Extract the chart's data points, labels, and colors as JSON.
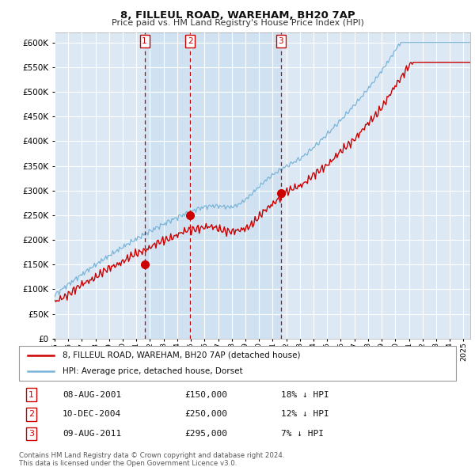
{
  "title": "8, FILLEUL ROAD, WAREHAM, BH20 7AP",
  "subtitle": "Price paid vs. HM Land Registry's House Price Index (HPI)",
  "legend_line1": "8, FILLEUL ROAD, WAREHAM, BH20 7AP (detached house)",
  "legend_line2": "HPI: Average price, detached house, Dorset",
  "footer1": "Contains HM Land Registry data © Crown copyright and database right 2024.",
  "footer2": "This data is licensed under the Open Government Licence v3.0.",
  "transactions": [
    {
      "label": "1",
      "date": "08-AUG-2001",
      "price": 150000,
      "pct": "18%",
      "x_year": 2001.6
    },
    {
      "label": "2",
      "date": "10-DEC-2004",
      "price": 250000,
      "pct": "12%",
      "x_year": 2004.95
    },
    {
      "label": "3",
      "date": "09-AUG-2011",
      "price": 295000,
      "pct": "7%",
      "x_year": 2011.6
    }
  ],
  "hpi_color": "#7ab4d8",
  "price_color": "#cc0000",
  "vline_color": "#cc0000",
  "bg_color": "#dce9f5",
  "shade_color": "#c5dcf0",
  "grid_color": "#ffffff",
  "ylim": [
    0,
    620000
  ],
  "xlim_start": 1995.0,
  "xlim_end": 2025.5
}
